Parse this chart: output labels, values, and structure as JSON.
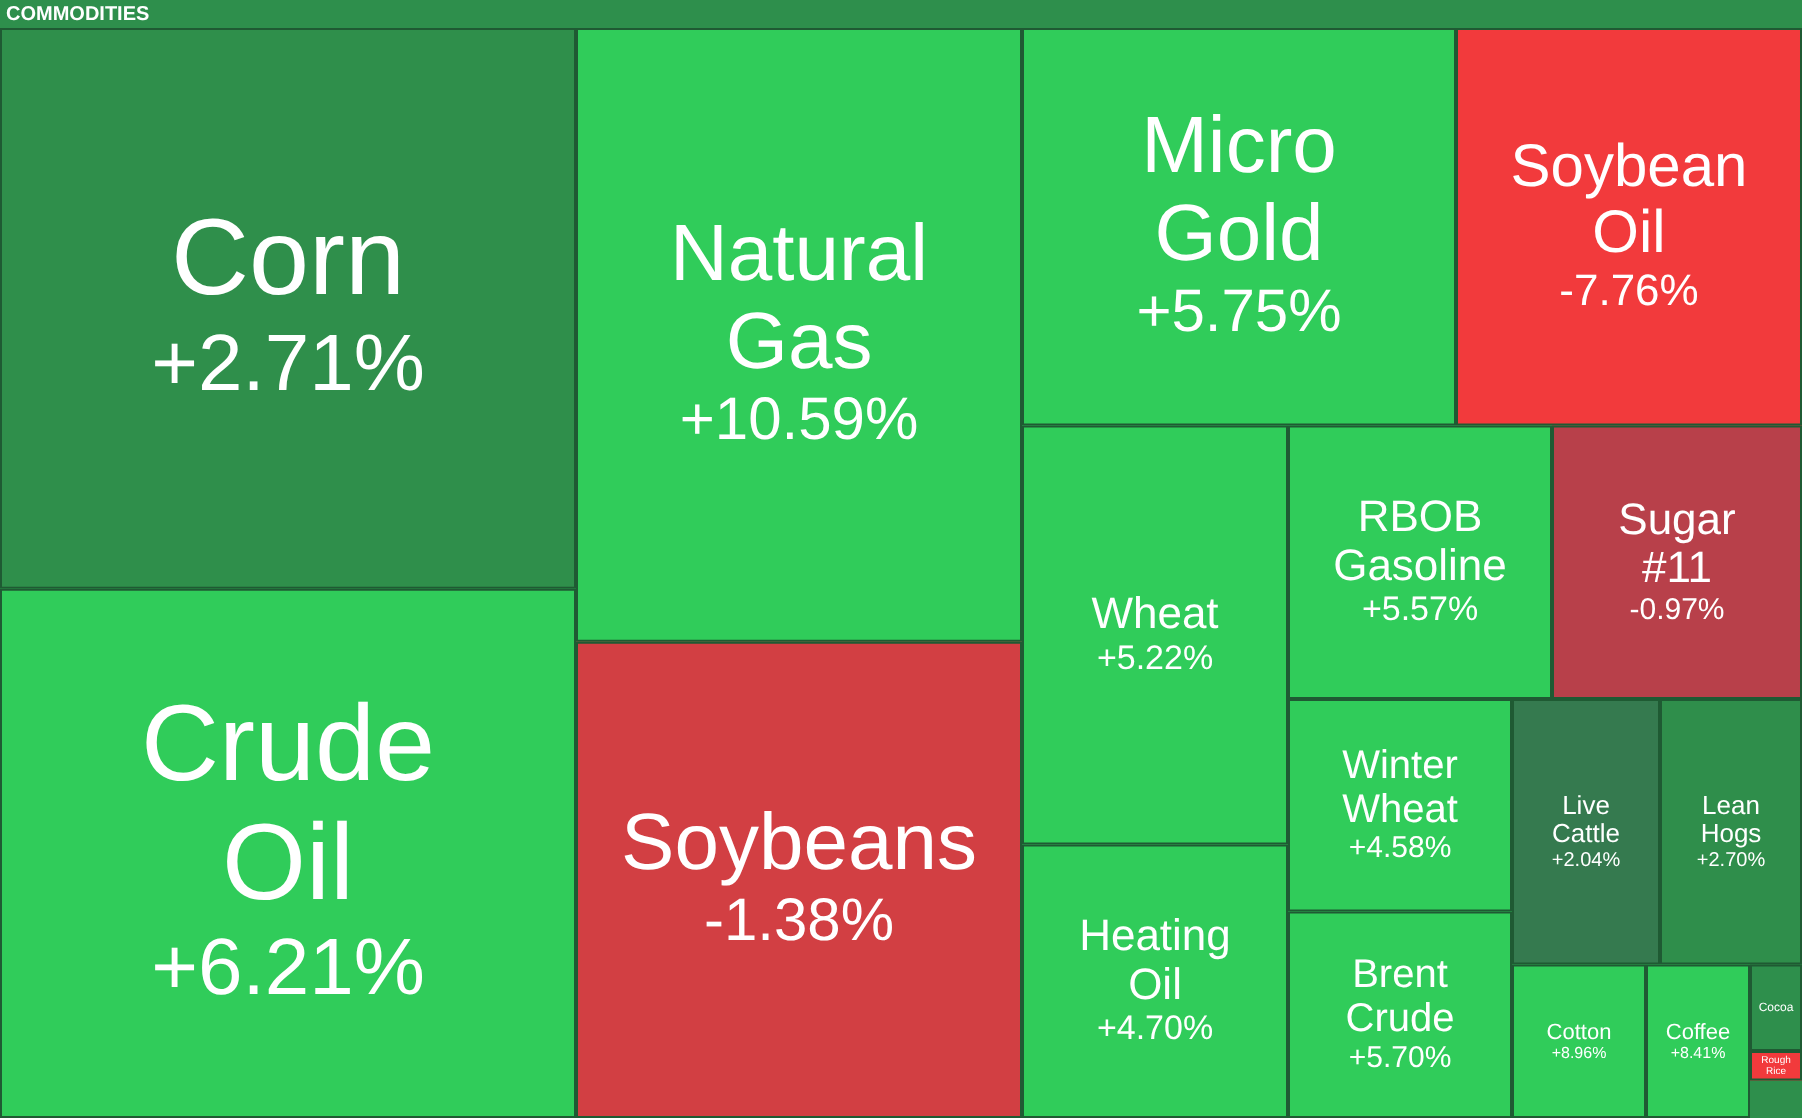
{
  "chart_data": {
    "type": "other",
    "title": "COMMODITIES",
    "categories": [
      "Corn",
      "Crude Oil",
      "Natural Gas",
      "Soybeans",
      "Micro Gold",
      "Soybean Oil",
      "Wheat",
      "Heating Oil",
      "RBOB Gasoline",
      "Sugar #11",
      "Winter Wheat",
      "Brent Crude",
      "Live Cattle",
      "Lean Hogs",
      "Cotton",
      "Coffee",
      "Cocoa",
      "Rough Rice"
    ],
    "values": [
      2.71,
      6.21,
      10.59,
      -1.38,
      5.75,
      -7.76,
      5.22,
      4.7,
      5.57,
      -0.97,
      4.58,
      5.7,
      2.04,
      2.7,
      8.96,
      8.41,
      null,
      null
    ],
    "value_labels": [
      "+2.71%",
      "+6.21%",
      "+10.59%",
      "-1.38%",
      "+5.75%",
      "-7.76%",
      "+5.22%",
      "+4.70%",
      "+5.57%",
      "-0.97%",
      "+4.58%",
      "+5.70%",
      "+2.04%",
      "+2.70%",
      "+8.96%",
      "+8.41%",
      null,
      null
    ],
    "colors": [
      null,
      null,
      null,
      null,
      null,
      null,
      null,
      null,
      null,
      null,
      null,
      null,
      null,
      null,
      null,
      null,
      "#2e8f4c",
      "#f23a3c"
    ]
  }
}
